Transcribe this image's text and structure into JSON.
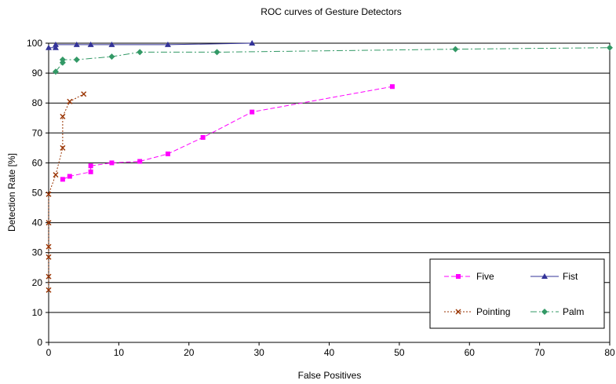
{
  "chart_data": {
    "type": "line",
    "title": "ROC curves of Gesture Detectors",
    "xlabel": "False Positives",
    "ylabel": "Detection Rate [%]",
    "xlim": [
      0,
      80
    ],
    "ylim": [
      0,
      100
    ],
    "xticks": [
      0,
      10,
      20,
      30,
      40,
      50,
      60,
      70,
      80
    ],
    "yticks": [
      0,
      10,
      20,
      30,
      40,
      50,
      60,
      70,
      80,
      90,
      100
    ],
    "grid": "horizontal",
    "legend_position": "bottom-right",
    "series": [
      {
        "name": "Five",
        "color": "#ff00ff",
        "marker": "square",
        "dash": "dashed",
        "points": [
          [
            2,
            54.5
          ],
          [
            3,
            55.5
          ],
          [
            6,
            57
          ],
          [
            6,
            59
          ],
          [
            9,
            60
          ],
          [
            13,
            60.5
          ],
          [
            17,
            63
          ],
          [
            22,
            68.5
          ],
          [
            29,
            77
          ],
          [
            49,
            85.5
          ]
        ]
      },
      {
        "name": "Fist",
        "color": "#333399",
        "marker": "triangle",
        "dash": "solid",
        "points": [
          [
            0,
            98.5
          ],
          [
            1,
            98.5
          ],
          [
            1,
            99.5
          ],
          [
            4,
            99.5
          ],
          [
            6,
            99.5
          ],
          [
            9,
            99.5
          ],
          [
            17,
            99.5
          ],
          [
            29,
            100
          ]
        ]
      },
      {
        "name": "Pointing",
        "color": "#993300",
        "marker": "x",
        "dash": "dotted",
        "points": [
          [
            0,
            17.5
          ],
          [
            0,
            22
          ],
          [
            0,
            28.5
          ],
          [
            0,
            32
          ],
          [
            0,
            40
          ],
          [
            0,
            49.5
          ],
          [
            1,
            56
          ],
          [
            2,
            65
          ],
          [
            2,
            75.5
          ],
          [
            3,
            80.5
          ],
          [
            5,
            83
          ]
        ]
      },
      {
        "name": "Palm",
        "color": "#339966",
        "marker": "diamond",
        "dash": "dashdot",
        "points": [
          [
            1,
            90.5
          ],
          [
            2,
            93.5
          ],
          [
            2,
            94.5
          ],
          [
            4,
            94.5
          ],
          [
            9,
            95.5
          ],
          [
            13,
            97
          ],
          [
            24,
            97
          ],
          [
            58,
            98
          ],
          [
            80,
            98.5
          ]
        ]
      }
    ]
  }
}
